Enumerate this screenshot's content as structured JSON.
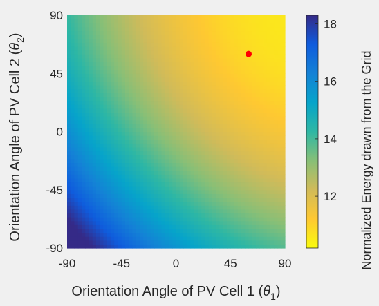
{
  "chart_data": {
    "type": "heatmap",
    "xlabel_main": "Orientation Angle of PV Cell 1 (",
    "xlabel_symbol": "θ",
    "xlabel_sub": "1",
    "xlabel_end": ")",
    "ylabel_main": "Orientation Angle of PV Cell 2 (",
    "ylabel_symbol": "θ",
    "ylabel_sub": "2",
    "ylabel_end": ")",
    "colorbar_label": "Normalized Energy drawn from the Grid",
    "xlim": [
      -90,
      90
    ],
    "ylim": [
      -90,
      90
    ],
    "xticks": [
      -90,
      -45,
      0,
      45,
      90
    ],
    "yticks": [
      -90,
      -45,
      0,
      45,
      90
    ],
    "xtick_labels": [
      "-90",
      "-45",
      "0",
      "45",
      "90"
    ],
    "ytick_labels": [
      "-90",
      "-45",
      "0",
      "45",
      "90"
    ],
    "clim": [
      10.2,
      18.3
    ],
    "colorbar_ticks": [
      12,
      14,
      16,
      18
    ],
    "colorbar_tick_labels": [
      "12",
      "14",
      "16",
      "18"
    ],
    "colormap": "parula",
    "colormap_colors": [
      "#352a87",
      "#0f5cdd",
      "#1481d6",
      "#06a4ca",
      "#2eb7a4",
      "#87bf77",
      "#d1bb59",
      "#fec832",
      "#f9fb0e"
    ],
    "grid": false,
    "minimum_marker": {
      "x": 60,
      "y": 60,
      "color": "#ff0000"
    },
    "surface_model": {
      "description_values": "energy(theta1, theta2) approximates quadratic bowl with minimum near (60, 60)",
      "minimum_value": 10.2,
      "corner_values": {
        "x-90_y-90": 18.2,
        "x90_y-90": 13.2,
        "x-90_y90": 14.0,
        "x90_y90": 10.6
      }
    }
  }
}
